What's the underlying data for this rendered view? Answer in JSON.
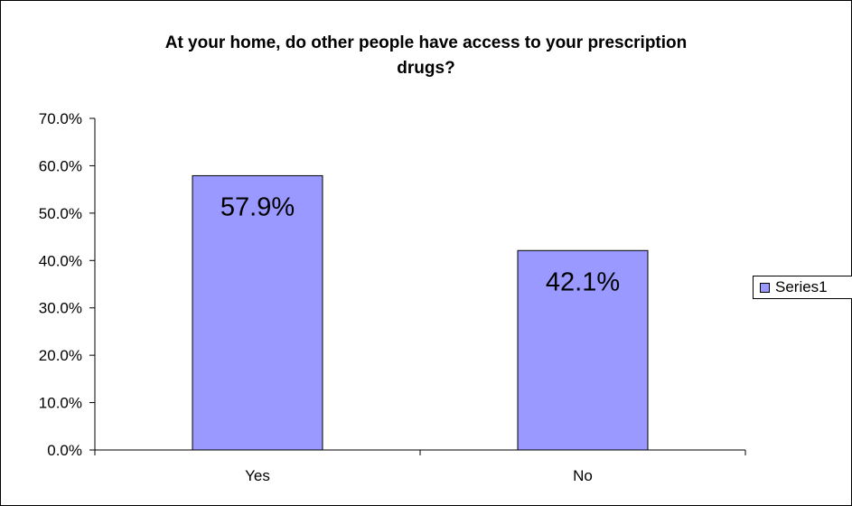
{
  "chart_data": {
    "type": "bar",
    "title_lines": [
      "At your home, do other people have access to your prescription",
      "drugs?"
    ],
    "categories": [
      "Yes",
      "No"
    ],
    "series": [
      {
        "name": "Series1",
        "values": [
          0.579,
          0.421
        ],
        "color": "#9999ff",
        "labels": [
          "57.9%",
          "42.1%"
        ]
      }
    ],
    "ylim": [
      0,
      0.7
    ],
    "y_ticks": [
      0,
      0.1,
      0.2,
      0.3,
      0.4,
      0.5,
      0.6,
      0.7
    ],
    "y_tick_labels": [
      "0.0%",
      "10.0%",
      "20.0%",
      "30.0%",
      "40.0%",
      "50.0%",
      "60.0%",
      "70.0%"
    ],
    "grid": false,
    "legend_position": "right"
  }
}
